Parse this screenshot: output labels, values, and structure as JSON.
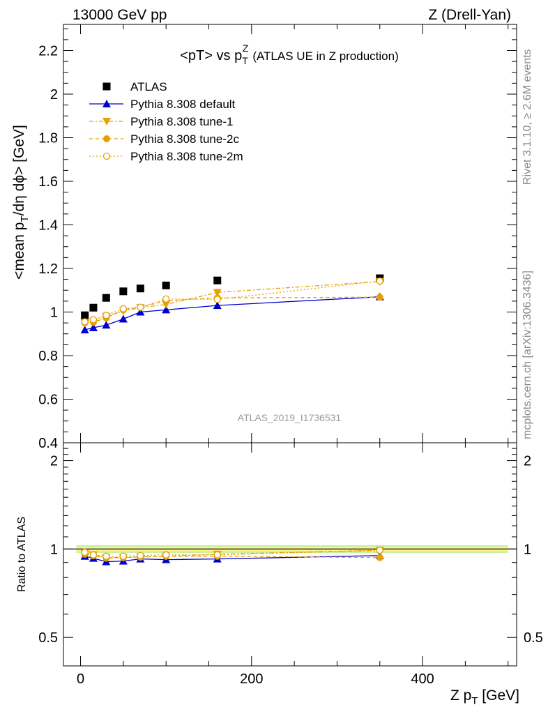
{
  "header": {
    "left": "13000 GeV pp",
    "right": "Z (Drell-Yan)"
  },
  "side_text": {
    "rivet": "Rivet 3.1.10, ≥ 2.6M events",
    "mcplots": "mcplots.cern.ch [arXiv:1306.3436]"
  },
  "colors": {
    "atlas": "#000000",
    "default": "#0000cc",
    "tunes": "#e8a000",
    "band_inner": "#fff68f",
    "band_outer": "#c8f0a0"
  },
  "chart_data": [
    {
      "type": "scatter",
      "title": {
        "main": "<pT> vs p",
        "sup": "Z",
        "sub": "T",
        "note": "(ATLAS UE in Z production)"
      },
      "ylabel": {
        "pre": "<mean p",
        "sub": "T",
        "post": "/dη dϕ> [GeV]"
      },
      "watermark": "ATLAS_2019_I1736531",
      "xlim": [
        -20,
        510
      ],
      "ylim": [
        0.4,
        2.32
      ],
      "yticks": [
        0.4,
        0.6,
        0.8,
        1,
        1.2,
        1.4,
        1.6,
        1.8,
        2,
        2.2
      ],
      "ytick_labels": [
        "0.4",
        "0.6",
        "0.8",
        "1",
        "1.2",
        "1.4",
        "1.6",
        "1.8",
        "2",
        "2.2"
      ],
      "x": [
        5,
        15,
        30,
        50,
        70,
        100,
        160,
        350
      ],
      "series": [
        {
          "name": "ATLAS",
          "marker": "square",
          "values": [
            0.985,
            1.02,
            1.065,
            1.095,
            1.108,
            1.122,
            1.145,
            1.155
          ]
        },
        {
          "name": "Pythia 8.308 default",
          "marker": "triangle-up",
          "values": [
            0.918,
            0.928,
            0.94,
            0.968,
            1.0,
            1.01,
            1.03,
            1.07
          ]
        },
        {
          "name": "Pythia 8.308 tune-1",
          "marker": "triangle-down",
          "values": [
            0.95,
            0.955,
            0.98,
            1.005,
            1.02,
            1.035,
            1.09,
            1.14
          ]
        },
        {
          "name": "Pythia 8.308 tune-2c",
          "marker": "circle",
          "values": [
            0.95,
            0.953,
            0.973,
            1.01,
            1.022,
            1.052,
            1.065,
            1.068
          ]
        },
        {
          "name": "Pythia 8.308 tune-2m",
          "marker": "circle-open",
          "values": [
            0.955,
            0.965,
            0.985,
            1.015,
            1.022,
            1.06,
            1.058,
            1.142
          ]
        }
      ]
    },
    {
      "type": "scatter",
      "ylabel": "Ratio to ATLAS",
      "xlabel": {
        "pre": "Z p",
        "sub": "T",
        "post": " [GeV]"
      },
      "xlim": [
        -20,
        510
      ],
      "ylim": [
        0.4,
        2.3
      ],
      "log_y": true,
      "xticks": [
        0,
        200,
        400
      ],
      "xtick_labels": [
        "0",
        "200",
        "400"
      ],
      "yticks": [
        0.5,
        1,
        2
      ],
      "ytick_labels": [
        "0.5",
        "1",
        "2"
      ],
      "x": [
        5,
        15,
        30,
        50,
        70,
        100,
        160,
        350
      ],
      "series": [
        {
          "name": "Pythia 8.308 default",
          "values": [
            0.945,
            0.93,
            0.905,
            0.91,
            0.925,
            0.92,
            0.925,
            0.95
          ]
        },
        {
          "name": "Pythia 8.308 tune-1",
          "values": [
            0.965,
            0.955,
            0.935,
            0.935,
            0.94,
            0.945,
            0.96,
            0.99
          ]
        },
        {
          "name": "Pythia 8.308 tune-2c",
          "values": [
            0.96,
            0.948,
            0.93,
            0.935,
            0.938,
            0.945,
            0.945,
            0.935
          ]
        },
        {
          "name": "Pythia 8.308 tune-2m",
          "values": [
            0.975,
            0.955,
            0.945,
            0.945,
            0.95,
            0.955,
            0.955,
            0.99
          ]
        }
      ]
    }
  ]
}
